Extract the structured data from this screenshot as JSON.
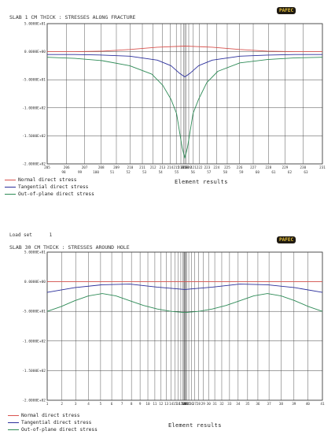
{
  "colors": {
    "normal": "#d9534f",
    "tangential": "#2b2f9c",
    "outofplane": "#2e8b57",
    "grid": "#444444",
    "logo_bg": "#1f1a12",
    "logo_fg": "#e8c23a"
  },
  "top": {
    "title": "SLAB 1 CM THICK : STRESSES ALONG FRACTURE",
    "yticks": [
      "5.0000E+01",
      "0.0000E+00",
      "-5.0000E+01",
      "-1.0000E+02",
      "-1.5000E+02",
      "-2.0000E+02"
    ],
    "xticks": [
      "205",
      "206",
      "207",
      "208",
      "209",
      "210",
      "211",
      "212",
      "213",
      "214",
      "215",
      "216",
      "217",
      "218",
      "219",
      "220",
      "221",
      "222",
      "223",
      "224",
      "225",
      "226",
      "227",
      "228",
      "229",
      "230",
      "231"
    ],
    "xticks_row2": [
      "98",
      "99",
      "100",
      "51",
      "52",
      "53",
      "54",
      "55",
      "56",
      "57",
      "58",
      "59",
      "60",
      "61",
      "62",
      "63"
    ],
    "xlabel": "Element results",
    "legend": [
      "Normal direct stress",
      "Tangential direct stress",
      "Out-of-plane direct stress"
    ],
    "logo": "PAFEC",
    "chart_data": {
      "type": "line",
      "ylim": [
        -200,
        50
      ],
      "xlim": [
        0,
        100
      ],
      "series": [
        {
          "name": "Normal direct stress",
          "x": [
            0,
            10,
            20,
            30,
            40,
            50,
            60,
            70,
            80,
            90,
            100
          ],
          "values": [
            0,
            0,
            1,
            4,
            8,
            10,
            8,
            4,
            1,
            0,
            0
          ]
        },
        {
          "name": "Tangential direct stress",
          "x": [
            0,
            10,
            20,
            30,
            40,
            45,
            48,
            50,
            52,
            55,
            60,
            70,
            80,
            90,
            100
          ],
          "values": [
            -5,
            -5,
            -6,
            -8,
            -15,
            -25,
            -38,
            -45,
            -38,
            -25,
            -15,
            -8,
            -6,
            -5,
            -5
          ]
        },
        {
          "name": "Out-of-plane direct stress",
          "x": [
            0,
            10,
            20,
            30,
            38,
            42,
            45,
            47,
            48,
            49,
            50,
            51,
            52,
            53,
            55,
            58,
            62,
            70,
            80,
            90,
            100
          ],
          "values": [
            -10,
            -12,
            -16,
            -25,
            -40,
            -60,
            -85,
            -110,
            -140,
            -170,
            -190,
            -170,
            -140,
            -110,
            -85,
            -55,
            -35,
            -20,
            -14,
            -11,
            -10
          ]
        }
      ]
    }
  },
  "bottom": {
    "load_set_label": "Load set",
    "load_set_value": "1",
    "title": "SLAB 30 CM THICK : STRESSES AROUND HOLE",
    "yticks": [
      "5.0000E+01",
      "0.0000E+00",
      "-5.0000E+01",
      "-1.0000E+02",
      "-1.5000E+02",
      "-2.0000E+02"
    ],
    "xticks": [
      "1",
      "2",
      "3",
      "4",
      "5",
      "6",
      "7",
      "8",
      "9",
      "10",
      "11",
      "12",
      "13",
      "14",
      "15",
      "16",
      "17",
      "18",
      "19",
      "20",
      "21",
      "22",
      "23",
      "24",
      "25",
      "26",
      "27",
      "28",
      "29",
      "30",
      "31",
      "32",
      "33",
      "34",
      "35",
      "36",
      "37",
      "38",
      "39",
      "40",
      "41"
    ],
    "xlabel": "Element results",
    "legend": [
      "Normal direct stress",
      "Tangential direct stress",
      "Out-of-plane direct stress"
    ],
    "logo": "PAFEC",
    "chart_data": {
      "type": "line",
      "ylim": [
        -200,
        50
      ],
      "xlim": [
        0,
        100
      ],
      "series": [
        {
          "name": "Normal direct stress",
          "x": [
            0,
            100
          ],
          "values": [
            0,
            0
          ]
        },
        {
          "name": "Tangential direct stress",
          "x": [
            0,
            10,
            20,
            30,
            40,
            50,
            60,
            70,
            80,
            90,
            100
          ],
          "values": [
            -18,
            -10,
            -5,
            -4,
            -9,
            -13,
            -9,
            -4,
            -5,
            -10,
            -18
          ]
        },
        {
          "name": "Out-of-plane direct stress",
          "x": [
            0,
            5,
            10,
            15,
            20,
            25,
            30,
            35,
            40,
            45,
            50,
            55,
            60,
            65,
            70,
            75,
            80,
            85,
            90,
            95,
            100
          ],
          "values": [
            -50,
            -42,
            -32,
            -24,
            -20,
            -24,
            -32,
            -40,
            -46,
            -50,
            -52,
            -50,
            -46,
            -40,
            -32,
            -24,
            -20,
            -24,
            -32,
            -42,
            -50
          ]
        }
      ]
    }
  }
}
